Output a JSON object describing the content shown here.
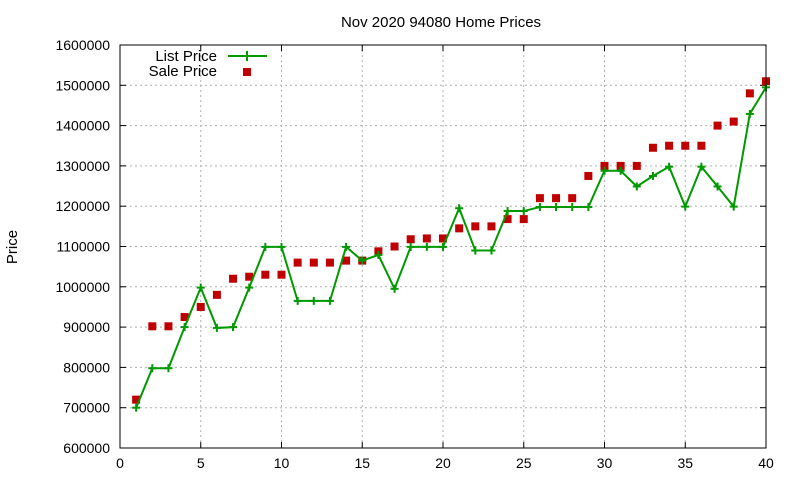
{
  "chart_data": {
    "type": "line",
    "title": "Nov 2020 94080 Home Prices",
    "xlabel": "",
    "ylabel": "Price",
    "xlim": [
      0,
      40
    ],
    "ylim": [
      600000,
      1600000
    ],
    "x_ticks": [
      0,
      5,
      10,
      15,
      20,
      25,
      30,
      35,
      40
    ],
    "y_ticks": [
      600000,
      700000,
      800000,
      900000,
      1000000,
      1100000,
      1200000,
      1300000,
      1400000,
      1500000,
      1600000
    ],
    "grid": true,
    "legend_position": "top-left",
    "x": [
      1,
      2,
      3,
      4,
      5,
      6,
      7,
      8,
      9,
      10,
      11,
      12,
      13,
      14,
      15,
      16,
      17,
      18,
      19,
      20,
      21,
      22,
      23,
      24,
      25,
      26,
      27,
      28,
      29,
      30,
      31,
      32,
      33,
      34,
      35,
      36,
      37,
      38,
      39,
      40
    ],
    "series": [
      {
        "name": "List Price",
        "style": "line-with-plus-markers",
        "color": "#009900",
        "values": [
          700000,
          798000,
          798000,
          900000,
          998000,
          898000,
          900000,
          998000,
          1099000,
          1099000,
          965000,
          965000,
          965000,
          1099000,
          1065000,
          1079000,
          995000,
          1099000,
          1099000,
          1099000,
          1195000,
          1090000,
          1090000,
          1188000,
          1188000,
          1198000,
          1198000,
          1198000,
          1198000,
          1288000,
          1288000,
          1249000,
          1275000,
          1298000,
          1199000,
          1298000,
          1249000,
          1199000,
          1429000,
          1495000
        ]
      },
      {
        "name": "Sale Price",
        "style": "square-points",
        "color": "#c00000",
        "values": [
          720000,
          902000,
          902000,
          925000,
          950000,
          980000,
          1020000,
          1025000,
          1030000,
          1030000,
          1060000,
          1060000,
          1060000,
          1065000,
          1065000,
          1088000,
          1100000,
          1118000,
          1120000,
          1120000,
          1145000,
          1150000,
          1150000,
          1168000,
          1168000,
          1220000,
          1220000,
          1220000,
          1275000,
          1300000,
          1300000,
          1300000,
          1345000,
          1350000,
          1350000,
          1350000,
          1400000,
          1410000,
          1480000,
          1510000
        ]
      }
    ]
  }
}
